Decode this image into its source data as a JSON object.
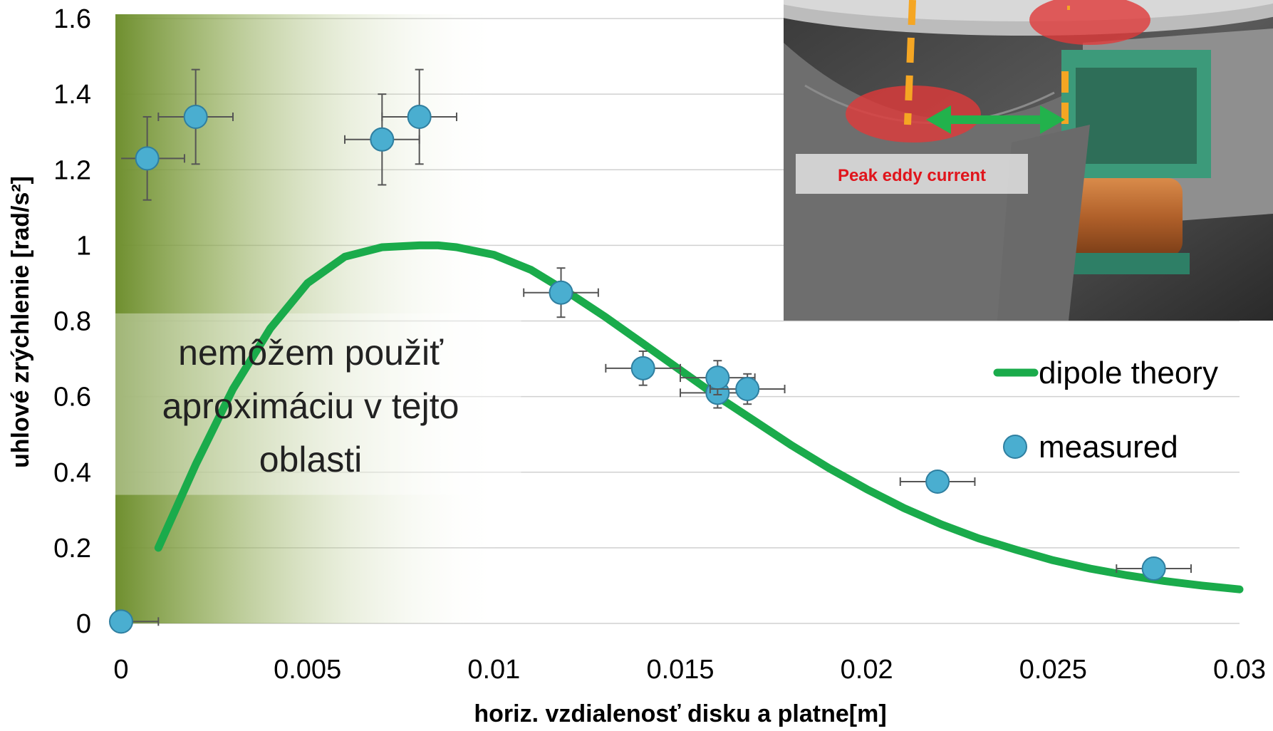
{
  "chart_data": {
    "type": "scatter",
    "xlabel": "horiz. vzdialenosť disku a platne[m]",
    "ylabel": "uhlové zrýchlenie [rad/s²]",
    "xlim": [
      0,
      0.03
    ],
    "ylim": [
      0,
      1.6
    ],
    "x_ticks": [
      "0",
      "0.005",
      "0.01",
      "0.015",
      "0.02",
      "0.025",
      "0.03"
    ],
    "y_ticks": [
      "0",
      "0.2",
      "0.4",
      "0.6",
      "0.8",
      "1",
      "1.2",
      "1.4",
      "1.6"
    ],
    "grid": "horizontal",
    "legend_position": "right",
    "series": [
      {
        "name": "dipole theory",
        "kind": "line",
        "color": "#1aab4b",
        "x": [
          0.001,
          0.002,
          0.003,
          0.004,
          0.005,
          0.006,
          0.007,
          0.008,
          0.0085,
          0.009,
          0.01,
          0.011,
          0.012,
          0.013,
          0.014,
          0.015,
          0.016,
          0.017,
          0.018,
          0.019,
          0.02,
          0.021,
          0.022,
          0.023,
          0.024,
          0.025,
          0.026,
          0.027,
          0.028,
          0.029,
          0.03
        ],
        "y": [
          0.2,
          0.42,
          0.62,
          0.78,
          0.9,
          0.97,
          0.995,
          1.0,
          1.0,
          0.995,
          0.975,
          0.935,
          0.875,
          0.81,
          0.74,
          0.67,
          0.6,
          0.535,
          0.47,
          0.41,
          0.355,
          0.305,
          0.262,
          0.225,
          0.195,
          0.167,
          0.145,
          0.127,
          0.112,
          0.1,
          0.09
        ]
      },
      {
        "name": "measured",
        "kind": "points",
        "color": "#4aaed0",
        "points": [
          {
            "x": 0.0,
            "y": 0.005,
            "xerr": 0.001,
            "yerr": 0
          },
          {
            "x": 0.0007,
            "y": 1.23,
            "xerr": 0.001,
            "yerr": 0.11
          },
          {
            "x": 0.002,
            "y": 1.34,
            "xerr": 0.001,
            "yerr": 0.125
          },
          {
            "x": 0.007,
            "y": 1.28,
            "xerr": 0.001,
            "yerr": 0.12
          },
          {
            "x": 0.008,
            "y": 1.34,
            "xerr": 0.001,
            "yerr": 0.125
          },
          {
            "x": 0.0118,
            "y": 0.875,
            "xerr": 0.001,
            "yerr": 0.065
          },
          {
            "x": 0.014,
            "y": 0.675,
            "xerr": 0.001,
            "yerr": 0.045
          },
          {
            "x": 0.016,
            "y": 0.61,
            "xerr": 0.001,
            "yerr": 0.04
          },
          {
            "x": 0.016,
            "y": 0.65,
            "xerr": 0.001,
            "yerr": 0.045
          },
          {
            "x": 0.0168,
            "y": 0.62,
            "xerr": 0.001,
            "yerr": 0.04
          },
          {
            "x": 0.0219,
            "y": 0.375,
            "xerr": 0.001,
            "yerr": 0
          },
          {
            "x": 0.0277,
            "y": 0.145,
            "xerr": 0.001,
            "yerr": 0
          }
        ]
      }
    ],
    "annotations": {
      "note_lines": [
        "nemôžem použiť",
        "aproximáciu v tejto",
        "oblasti"
      ],
      "photo_label": "Peak eddy current"
    }
  },
  "colors": {
    "shade_start": "#6f8f2f",
    "grid": "#d0d0d0",
    "theory": "#1aab4b",
    "measured": "#4aaed0",
    "measured_edge": "#2f7fa0",
    "errorbar": "#555555"
  }
}
